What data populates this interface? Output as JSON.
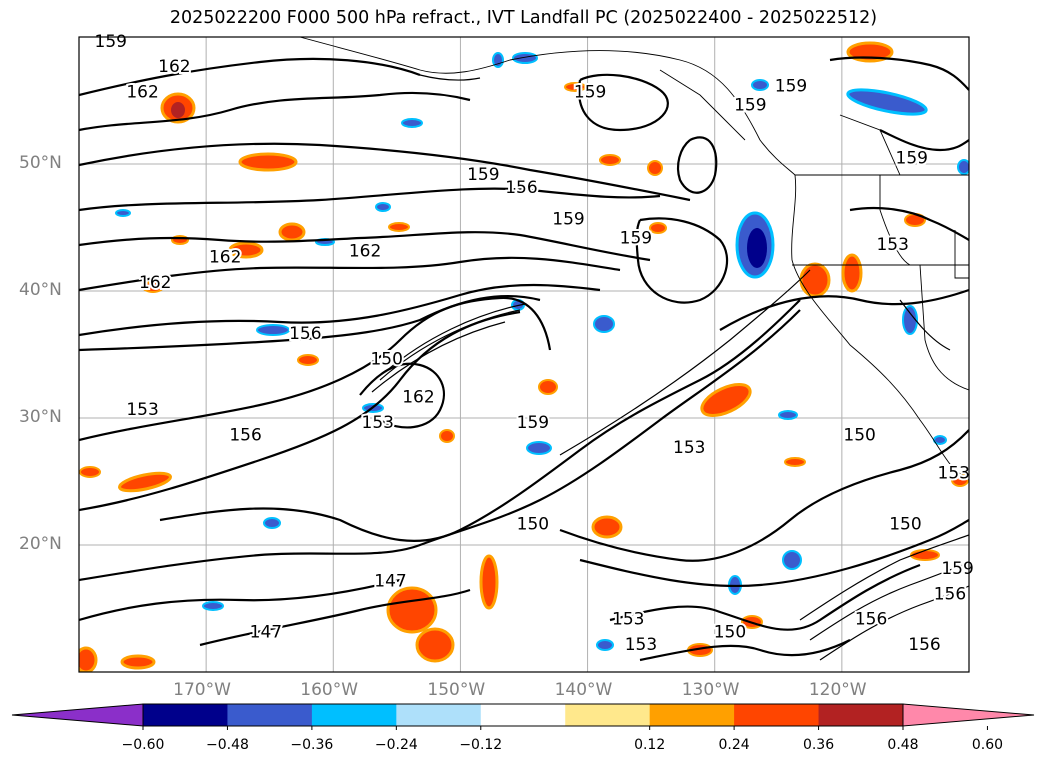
{
  "chart_data": {
    "type": "contour_map",
    "title": "2025022200 F000 500 hPa refract., IVT Landfall PC (2025022400 - 2025022512)",
    "lon_range": [
      -180,
      -110
    ],
    "lat_range": [
      10,
      60
    ],
    "grid": true,
    "lat_ticks": [
      {
        "value": 20,
        "label": "20°N"
      },
      {
        "value": 30,
        "label": "30°N"
      },
      {
        "value": 40,
        "label": "40°N"
      },
      {
        "value": 50,
        "label": "50°N"
      }
    ],
    "lon_ticks": [
      {
        "value": -170,
        "label": "170°W"
      },
      {
        "value": -160,
        "label": "160°W"
      },
      {
        "value": -150,
        "label": "150°W"
      },
      {
        "value": -140,
        "label": "140°W"
      },
      {
        "value": -130,
        "label": "130°W"
      },
      {
        "value": -120,
        "label": "120°W"
      }
    ],
    "contour_labels": [
      {
        "text": "159",
        "lon": -177.5,
        "lat": 59.7
      },
      {
        "text": "162",
        "lon": -172.5,
        "lat": 57.7
      },
      {
        "text": "162",
        "lon": -175,
        "lat": 55.7
      },
      {
        "text": "159",
        "lon": -148.2,
        "lat": 49.2
      },
      {
        "text": "156",
        "lon": -145.2,
        "lat": 48.2
      },
      {
        "text": "159",
        "lon": -139.8,
        "lat": 55.7
      },
      {
        "text": "159",
        "lon": -127.2,
        "lat": 54.7
      },
      {
        "text": "159",
        "lon": -124,
        "lat": 56.2
      },
      {
        "text": "159",
        "lon": -114.5,
        "lat": 50.5
      },
      {
        "text": "153",
        "lon": -116,
        "lat": 43.7
      },
      {
        "text": "159",
        "lon": -141.5,
        "lat": 45.7
      },
      {
        "text": "159",
        "lon": -136.2,
        "lat": 44.2
      },
      {
        "text": "162",
        "lon": -168.5,
        "lat": 42.7
      },
      {
        "text": "162",
        "lon": -157.5,
        "lat": 43.2
      },
      {
        "text": "162",
        "lon": -174,
        "lat": 40.7
      },
      {
        "text": "156",
        "lon": -162.2,
        "lat": 36.7
      },
      {
        "text": "150",
        "lon": -155.8,
        "lat": 34.7
      },
      {
        "text": "153",
        "lon": -175,
        "lat": 30.7
      },
      {
        "text": "162",
        "lon": -153.3,
        "lat": 31.7
      },
      {
        "text": "153",
        "lon": -156.5,
        "lat": 29.7
      },
      {
        "text": "156",
        "lon": -166.9,
        "lat": 28.7
      },
      {
        "text": "159",
        "lon": -144.3,
        "lat": 29.7
      },
      {
        "text": "153",
        "lon": -132,
        "lat": 27.7
      },
      {
        "text": "150",
        "lon": -118.6,
        "lat": 28.7
      },
      {
        "text": "150",
        "lon": -144.3,
        "lat": 21.7
      },
      {
        "text": "150",
        "lon": -115,
        "lat": 21.7
      },
      {
        "text": "153",
        "lon": -111.2,
        "lat": 25.7
      },
      {
        "text": "147",
        "lon": -155.5,
        "lat": 17.2
      },
      {
        "text": "147",
        "lon": -165.3,
        "lat": 13.2
      },
      {
        "text": "153",
        "lon": -136.8,
        "lat": 14.2
      },
      {
        "text": "153",
        "lon": -135.8,
        "lat": 12.2
      },
      {
        "text": "150",
        "lon": -128.8,
        "lat": 13.2
      },
      {
        "text": "156",
        "lon": -117.7,
        "lat": 14.2
      },
      {
        "text": "156",
        "lon": -113.5,
        "lat": 12.2
      },
      {
        "text": "156",
        "lon": -111.5,
        "lat": 16.2
      },
      {
        "text": "159",
        "lon": -110.9,
        "lat": 18.2
      }
    ],
    "colorbar": {
      "ticks": [
        "−0.60",
        "−0.48",
        "−0.36",
        "−0.24",
        "−0.12",
        "0.12",
        "0.24",
        "0.36",
        "0.48",
        "0.60"
      ],
      "colors": [
        "#8b2fc9",
        "#00008b",
        "#3a5bcd",
        "#00bfff",
        "#aee0fa",
        "#ffffff",
        "#ffe88c",
        "#ffa000",
        "#ff4500",
        "#b22222",
        "#ff88aa"
      ]
    }
  }
}
